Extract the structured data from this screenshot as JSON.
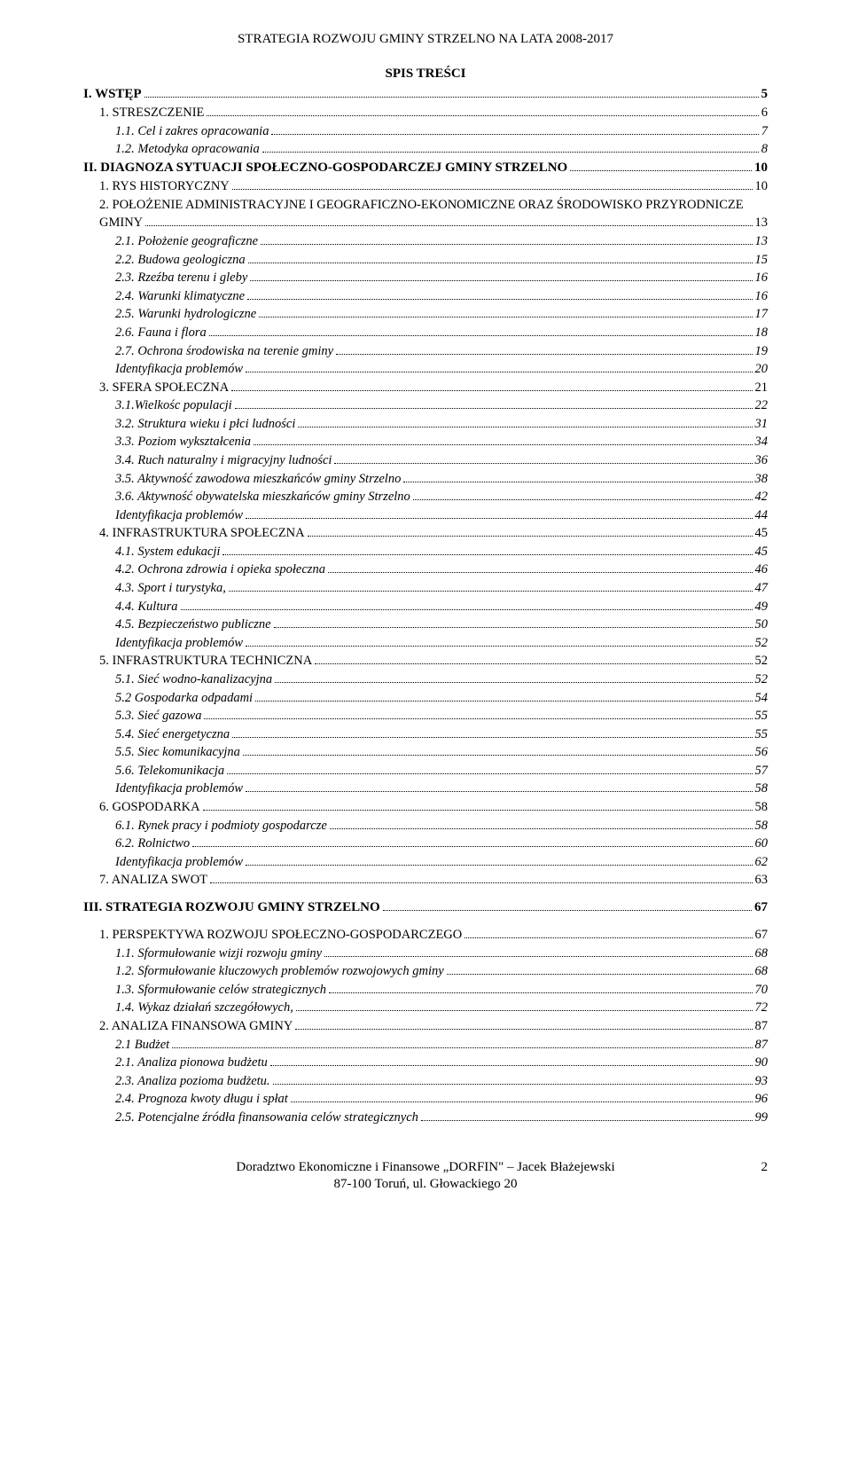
{
  "doc_title": "STRATEGIA ROZWOJU GMINY STRZELNO NA LATA 2008-2017",
  "spis_title": "SPIS TREŚCI",
  "toc": [
    {
      "text": "I. WSTĘP",
      "page": "5",
      "level": 1,
      "style": "bold"
    },
    {
      "text": "1. STRESZCZENIE",
      "page": "6",
      "level": 2,
      "style": "sc"
    },
    {
      "text": "1.1. Cel i zakres opracowania",
      "page": "7",
      "level": 3,
      "style": "italic"
    },
    {
      "text": "1.2. Metodyka opracowania",
      "page": "8",
      "level": 3,
      "style": "italic"
    },
    {
      "text": "II. DIAGNOZA SYTUACJI SPOŁECZNO-GOSPODARCZEJ GMINY STRZELNO",
      "page": "10",
      "level": 1,
      "style": "bold"
    },
    {
      "text": "1. RYS HISTORYCZNY",
      "page": "10",
      "level": 2,
      "style": "sc"
    },
    {
      "text": "2. POŁOŻENIE ADMINISTRACYJNE I GEOGRAFICZNO-EKONOMICZNE ORAZ ŚRODOWISKO PRZYRODNICZE",
      "page": "",
      "level": 2,
      "style": "sc",
      "nopagedots": true
    },
    {
      "text": "GMINY",
      "page": "13",
      "level": 2,
      "style": "sc",
      "continuation": true
    },
    {
      "text": "2.1. Położenie geograficzne",
      "page": "13",
      "level": 3,
      "style": "italic"
    },
    {
      "text": "2.2. Budowa geologiczna",
      "page": "15",
      "level": 3,
      "style": "italic"
    },
    {
      "text": "2.3. Rzeźba terenu i gleby",
      "page": "16",
      "level": 3,
      "style": "italic"
    },
    {
      "text": "2.4. Warunki klimatyczne",
      "page": "16",
      "level": 3,
      "style": "italic"
    },
    {
      "text": "2.5. Warunki hydrologiczne",
      "page": "17",
      "level": 3,
      "style": "italic"
    },
    {
      "text": "2.6. Fauna i flora",
      "page": "18",
      "level": 3,
      "style": "italic"
    },
    {
      "text": "2.7. Ochrona środowiska na terenie gminy",
      "page": "19",
      "level": 3,
      "style": "italic"
    },
    {
      "text": "Identyfikacja problemów",
      "page": "20",
      "level": 3,
      "style": "italic"
    },
    {
      "text": "3. SFERA SPOŁECZNA",
      "page": "21",
      "level": 2,
      "style": "sc"
    },
    {
      "text": "3.1.Wielkośc populacji",
      "page": "22",
      "level": 3,
      "style": "italic"
    },
    {
      "text": "3.2. Struktura wieku i płci ludności",
      "page": "31",
      "level": 3,
      "style": "italic"
    },
    {
      "text": "3.3. Poziom wykształcenia",
      "page": "34",
      "level": 3,
      "style": "italic"
    },
    {
      "text": "3.4. Ruch naturalny i migracyjny ludności",
      "page": "36",
      "level": 3,
      "style": "italic"
    },
    {
      "text": "3.5. Aktywność zawodowa mieszkańców gminy Strzelno",
      "page": "38",
      "level": 3,
      "style": "italic"
    },
    {
      "text": "3.6. Aktywność obywatelska mieszkańców gminy Strzelno",
      "page": "42",
      "level": 3,
      "style": "italic"
    },
    {
      "text": "Identyfikacja problemów",
      "page": "44",
      "level": 3,
      "style": "italic"
    },
    {
      "text": "4. INFRASTRUKTURA SPOŁECZNA",
      "page": "45",
      "level": 2,
      "style": "sc"
    },
    {
      "text": "4.1. System edukacji",
      "page": "45",
      "level": 3,
      "style": "italic"
    },
    {
      "text": "4.2. Ochrona zdrowia i opieka społeczna",
      "page": "46",
      "level": 3,
      "style": "italic"
    },
    {
      "text": "4.3. Sport i turystyka,",
      "page": "47",
      "level": 3,
      "style": "italic"
    },
    {
      "text": "4.4. Kultura",
      "page": "49",
      "level": 3,
      "style": "italic"
    },
    {
      "text": "4.5. Bezpieczeństwo publiczne",
      "page": "50",
      "level": 3,
      "style": "italic"
    },
    {
      "text": "Identyfikacja problemów",
      "page": "52",
      "level": 3,
      "style": "italic"
    },
    {
      "text": "5. INFRASTRUKTURA TECHNICZNA",
      "page": "52",
      "level": 2,
      "style": "sc"
    },
    {
      "text": "5.1. Sieć wodno-kanalizacyjna",
      "page": "52",
      "level": 3,
      "style": "italic"
    },
    {
      "text": "5.2 Gospodarka odpadami",
      "page": "54",
      "level": 3,
      "style": "italic"
    },
    {
      "text": "5.3. Sieć gazowa",
      "page": "55",
      "level": 3,
      "style": "italic"
    },
    {
      "text": "5.4. Sieć energetyczna",
      "page": "55",
      "level": 3,
      "style": "italic"
    },
    {
      "text": "5.5. Siec komunikacyjna",
      "page": "56",
      "level": 3,
      "style": "italic"
    },
    {
      "text": "5.6. Telekomunikacja",
      "page": "57",
      "level": 3,
      "style": "italic"
    },
    {
      "text": "Identyfikacja problemów",
      "page": "58",
      "level": 3,
      "style": "italic"
    },
    {
      "text": "6. GOSPODARKA",
      "page": "58",
      "level": 2,
      "style": "sc"
    },
    {
      "text": "6.1. Rynek pracy i podmioty gospodarcze",
      "page": "58",
      "level": 3,
      "style": "italic"
    },
    {
      "text": "6.2. Rolnictwo",
      "page": "60",
      "level": 3,
      "style": "italic"
    },
    {
      "text": "Identyfikacja problemów",
      "page": "62",
      "level": 3,
      "style": "italic"
    },
    {
      "text": "7. ANALIZA SWOT",
      "page": "63",
      "level": 2,
      "style": "sc"
    },
    {
      "text": "III. STRATEGIA ROZWOJU GMINY STRZELNO",
      "page": "67",
      "level": 1,
      "style": "bold",
      "gapbefore": true
    },
    {
      "text": "1. PERSPEKTYWA ROZWOJU SPOŁECZNO-GOSPODARCZEGO",
      "page": "67",
      "level": 2,
      "style": "sc",
      "gapbefore": true
    },
    {
      "text": "1.1.    Sformułowanie wizji rozwoju gminy",
      "page": "68",
      "level": 3,
      "style": "italic"
    },
    {
      "text": "1.2. Sformułowanie kluczowych problemów rozwojowych gminy",
      "page": "68",
      "level": 3,
      "style": "italic"
    },
    {
      "text": "1.3. Sformułowanie celów strategicznych",
      "page": "70",
      "level": 3,
      "style": "italic"
    },
    {
      "text": "1.4. Wykaz działań szczegółowych,",
      "page": "72",
      "level": 3,
      "style": "italic"
    },
    {
      "text": "2. ANALIZA FINANSOWA GMINY",
      "page": "87",
      "level": 2,
      "style": "sc"
    },
    {
      "text": "2.1 Budżet",
      "page": "87",
      "level": 3,
      "style": "italic"
    },
    {
      "text": "2.1. Analiza pionowa budżetu",
      "page": "90",
      "level": 3,
      "style": "italic"
    },
    {
      "text": "2.3. Analiza pozioma budżetu.",
      "page": "93",
      "level": 3,
      "style": "italic"
    },
    {
      "text": "2.4. Prognoza kwoty długu i spłat",
      "page": "96",
      "level": 3,
      "style": "italic"
    },
    {
      "text": "2.5. Potencjalne źródła finansowania celów strategicznych",
      "page": "99",
      "level": 3,
      "style": "italic"
    }
  ],
  "footer_line1": "Doradztwo Ekonomiczne i Finansowe „DORFIN\" – Jacek Błażejewski",
  "footer_line2": "87-100 Toruń, ul. Głowackiego 20",
  "page_number": "2"
}
